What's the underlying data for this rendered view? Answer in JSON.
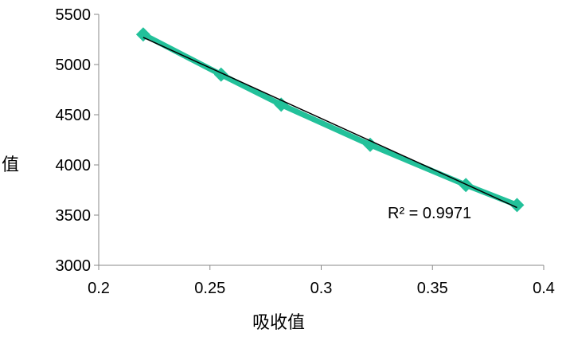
{
  "chart_data": {
    "type": "scatter",
    "xlabel": "吸收值",
    "ylabel": "值",
    "xlim": [
      0.2,
      0.4
    ],
    "ylim": [
      3000,
      5500
    ],
    "x_ticks": [
      "0.2",
      "0.25",
      "0.3",
      "0.35",
      "0.4"
    ],
    "y_ticks": [
      "3000",
      "3500",
      "4000",
      "4500",
      "5000",
      "5500"
    ],
    "series": [
      {
        "x": [
          0.22,
          0.255,
          0.282,
          0.322,
          0.365,
          0.388
        ],
        "y": [
          5300,
          4900,
          4600,
          4200,
          3800,
          3600
        ],
        "color": "#22c19a",
        "marker": "diamond",
        "line": true
      }
    ],
    "trendline": {
      "type": "linear",
      "x": [
        0.22,
        0.388
      ],
      "y": [
        5270,
        3575
      ],
      "color": "#000000"
    },
    "annotation": "R² = 0.9971",
    "grid": false,
    "legend": "none"
  }
}
